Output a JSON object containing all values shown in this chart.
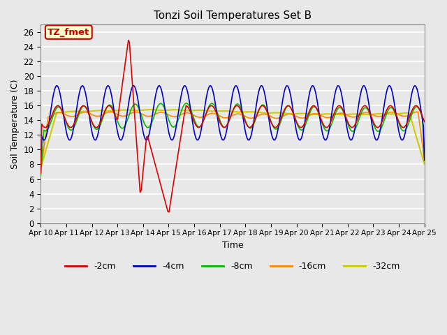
{
  "title": "Tonzi Soil Temperatures Set B",
  "xlabel": "Time",
  "ylabel": "Soil Temperature (C)",
  "annotation_label": "TZ_fmet",
  "annotation_box_color": "#ffffcc",
  "annotation_border_color": "#cc0000",
  "annotation_text_color": "#cc0000",
  "ylim": [
    0,
    27
  ],
  "yticks": [
    0,
    2,
    4,
    6,
    8,
    10,
    12,
    14,
    16,
    18,
    20,
    22,
    24,
    26
  ],
  "background_color": "#e8e8e8",
  "plot_bg_color": "#e8e8e8",
  "grid_color": "#ffffff",
  "series": {
    "-2cm": {
      "color": "#dd0000",
      "lw": 1.2
    },
    "-4cm": {
      "color": "#0000cc",
      "lw": 1.2
    },
    "-8cm": {
      "color": "#00bb00",
      "lw": 1.2
    },
    "-16cm": {
      "color": "#ff8800",
      "lw": 1.2
    },
    "-32cm": {
      "color": "#cccc00",
      "lw": 1.5
    }
  },
  "x_labels": [
    "Apr 10",
    "Apr 11",
    "Apr 12",
    "Apr 13",
    "Apr 14",
    "Apr 15",
    "Apr 16",
    "Apr 17",
    "Apr 18",
    "Apr 19",
    "Apr 20",
    "Apr 21",
    "Apr 22",
    "Apr 23",
    "Apr 24",
    "Apr 25"
  ],
  "figsize": [
    6.4,
    4.8
  ],
  "dpi": 100
}
